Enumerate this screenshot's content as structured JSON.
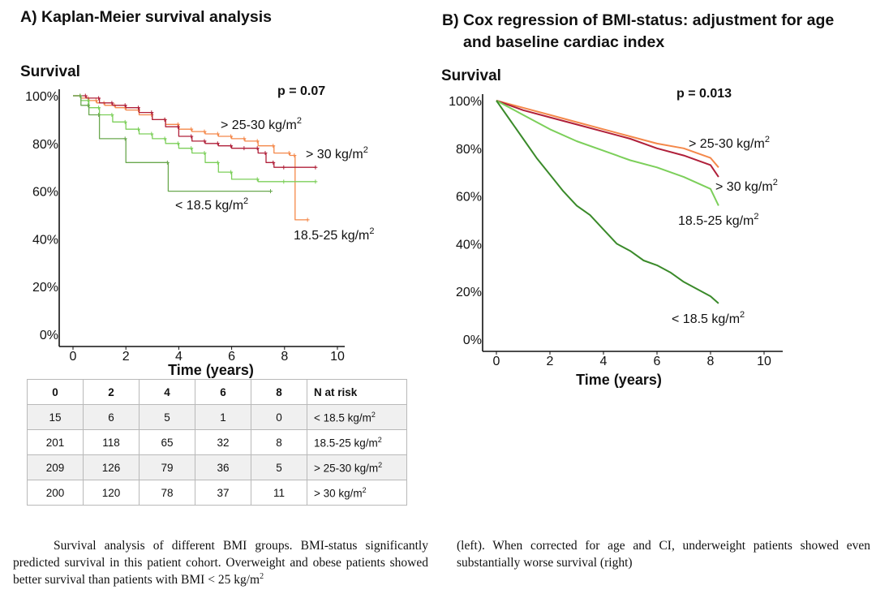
{
  "panel_a": {
    "title": "A) Kaplan-Meier survival analysis",
    "p_value": "p = 0.07"
  },
  "panel_b": {
    "title_line1": "B) Cox regression of BMI-status: adjustment for age",
    "title_line2": "and baseline cardiac index",
    "p_value": "p = 0.013"
  },
  "risk_table": {
    "header": [
      "0",
      "2",
      "4",
      "6",
      "8",
      "N at risk"
    ],
    "rows": [
      {
        "values": [
          "15",
          "6",
          "5",
          "1",
          "0"
        ],
        "group": "< 18.5 kg/m",
        "sup": "2"
      },
      {
        "values": [
          "201",
          "118",
          "65",
          "32",
          "8"
        ],
        "group": "18.5-25 kg/m",
        "sup": "2"
      },
      {
        "values": [
          "209",
          "126",
          "79",
          "36",
          "5"
        ],
        "group": "> 25-30 kg/m",
        "sup": "2"
      },
      {
        "values": [
          "200",
          "120",
          "78",
          "37",
          "11"
        ],
        "group": "> 30 kg/m",
        "sup": "2"
      }
    ]
  },
  "caption": {
    "left": "Survival analysis of different BMI groups. BMI-status significantly predicted survival in this patient cohort. Overweight and obese patients showed better survival than patients with BMI < 25 kg/m",
    "left_sup": "2",
    "right": "(left). When corrected for age and CI, underweight patients showed even substantially worse survival (right)"
  },
  "colors": {
    "lt_18_5": "#6aa84f",
    "bmi_18_5_25": "#7ccf5a",
    "bmi_25_30": "#f4884a",
    "gt_30": "#b0203a",
    "cox_lt_18_5": "#3a8a2a"
  },
  "chart_data": [
    {
      "type": "line",
      "subtype": "kaplan-meier step curves with censor marks",
      "title": "A) Kaplan-Meier survival analysis",
      "xlabel": "Time (years)",
      "ylabel": "Survival",
      "xlim": [
        0,
        10
      ],
      "ylim": [
        0,
        100
      ],
      "x_ticks": [
        0,
        2,
        4,
        6,
        8,
        10
      ],
      "y_ticks": [
        "0%",
        "20%",
        "40%",
        "60%",
        "80%",
        "100%"
      ],
      "grid": false,
      "annotation": "p = 0.07",
      "series": [
        {
          "name": "> 25-30 kg/m2",
          "label": "> 25-30 kg/m",
          "label_sup": "2",
          "color_key": "bmi_25_30",
          "x": [
            0,
            0.3,
            0.6,
            0.9,
            1.2,
            1.6,
            2.0,
            2.5,
            3.0,
            3.5,
            4.0,
            4.5,
            5.0,
            5.5,
            6.0,
            6.5,
            7.0,
            7.6,
            8.2,
            8.4,
            8.9
          ],
          "y": [
            100,
            99,
            98,
            97,
            96,
            95,
            94,
            92,
            90,
            88,
            86,
            85,
            84,
            83,
            82,
            81,
            79,
            76,
            75,
            48,
            48
          ]
        },
        {
          "name": "> 30 kg/m2",
          "label": "> 30 kg/m",
          "label_sup": "2",
          "color_key": "gt_30",
          "x": [
            0,
            0.5,
            1.0,
            1.5,
            2.0,
            2.5,
            3.0,
            3.5,
            4.0,
            4.5,
            5.0,
            5.5,
            6.0,
            6.5,
            7.0,
            7.3,
            7.6,
            8.0,
            9.2
          ],
          "y": [
            100,
            99,
            97,
            96,
            95,
            93,
            90,
            87,
            83,
            81,
            80,
            79,
            78,
            78,
            76,
            72,
            70,
            70,
            70
          ]
        },
        {
          "name": "18.5-25 kg/m2",
          "label": "18.5-25 kg/m",
          "label_sup": "2",
          "color_key": "bmi_18_5_25",
          "x": [
            0,
            0.3,
            0.6,
            1.0,
            1.5,
            2.0,
            2.5,
            3.0,
            3.5,
            4.0,
            4.5,
            5.0,
            5.5,
            6.0,
            7.0,
            8.0,
            9.2
          ],
          "y": [
            100,
            98,
            95,
            92,
            89,
            86,
            84,
            82,
            80,
            78,
            76,
            72,
            68,
            65,
            64,
            64,
            64
          ]
        },
        {
          "name": "< 18.5 kg/m2",
          "label": "< 18.5 kg/m",
          "label_sup": "2",
          "color_key": "lt_18_5",
          "x": [
            0,
            0.3,
            0.6,
            1.0,
            2.0,
            3.6,
            7.5
          ],
          "y": [
            100,
            96,
            92,
            82,
            72,
            60,
            60
          ]
        }
      ]
    },
    {
      "type": "line",
      "subtype": "adjusted survival curves",
      "title": "B) Cox regression of BMI-status: adjustment for age and baseline cardiac index",
      "xlabel": "Time (years)",
      "ylabel": "Survival",
      "xlim": [
        0,
        10
      ],
      "ylim": [
        0,
        100
      ],
      "x_ticks": [
        0,
        2,
        4,
        6,
        8,
        10
      ],
      "y_ticks": [
        "0%",
        "20%",
        "40%",
        "60%",
        "80%",
        "100%"
      ],
      "grid": false,
      "annotation": "p = 0.013",
      "series": [
        {
          "name": "> 25-30 kg/m2",
          "label": "> 25-30 kg/m",
          "label_sup": "2",
          "color_key": "bmi_25_30",
          "x": [
            0,
            1,
            2,
            3,
            4,
            5,
            6,
            7,
            8,
            8.3
          ],
          "y": [
            100,
            97,
            94,
            91,
            88,
            85,
            82,
            80,
            76,
            72
          ]
        },
        {
          "name": "> 30 kg/m2",
          "label": "> 30 kg/m",
          "label_sup": "2",
          "color_key": "gt_30",
          "x": [
            0,
            1,
            2,
            3,
            4,
            5,
            6,
            7,
            8,
            8.3
          ],
          "y": [
            100,
            96,
            93,
            90,
            87,
            84,
            80,
            77,
            73,
            68
          ]
        },
        {
          "name": "18.5-25 kg/m2",
          "label": "18.5-25 kg/m",
          "label_sup": "2",
          "color_key": "bmi_18_5_25",
          "x": [
            0,
            1,
            2,
            3,
            4,
            5,
            6,
            7,
            8,
            8.3
          ],
          "y": [
            100,
            94,
            88,
            83,
            79,
            75,
            72,
            68,
            63,
            56
          ]
        },
        {
          "name": "< 18.5 kg/m2",
          "label": "< 18.5 kg/m",
          "label_sup": "2",
          "color_key": "cox_lt_18_5",
          "x": [
            0,
            0.5,
            1,
            1.5,
            2,
            2.5,
            3,
            3.5,
            4,
            4.5,
            5,
            5.5,
            6,
            6.5,
            7,
            7.5,
            8,
            8.3
          ],
          "y": [
            100,
            92,
            84,
            76,
            69,
            62,
            56,
            52,
            46,
            40,
            37,
            33,
            31,
            28,
            24,
            21,
            18,
            15
          ]
        }
      ]
    }
  ]
}
